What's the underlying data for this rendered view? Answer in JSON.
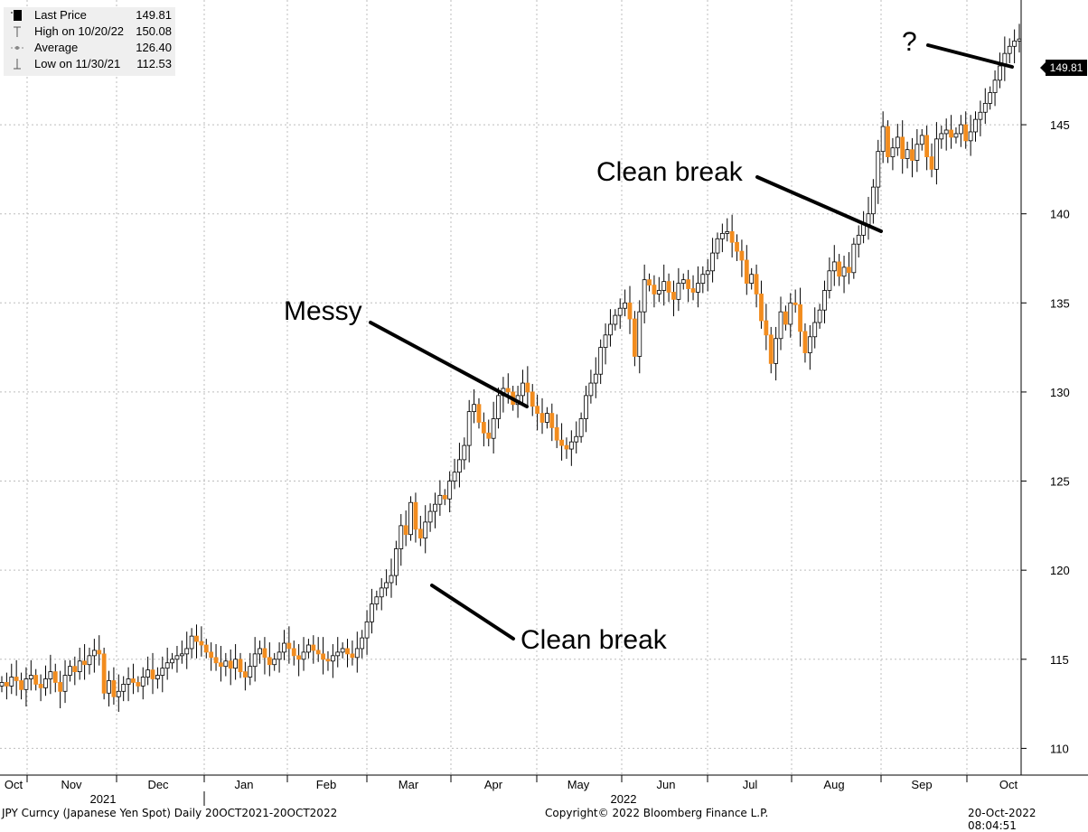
{
  "chart_data": {
    "type": "candlestick",
    "ylim": [
      108.5,
      152
    ],
    "yticks": [
      110,
      115,
      120,
      125,
      130,
      135,
      140,
      145
    ],
    "months": [
      "Oct",
      "Nov",
      "Dec",
      "Jan",
      "Feb",
      "Mar",
      "Apr",
      "May",
      "Jun",
      "Jul",
      "Aug",
      "Sep",
      "Oct"
    ],
    "years": [
      "2021",
      "2022"
    ],
    "last_price_label": "149.81",
    "colors": {
      "up": "#ffffff",
      "down": "#f28c1e",
      "grid": "#bdbdbd"
    },
    "closes": [
      113.7,
      113.5,
      114.0,
      113.8,
      113.3,
      113.9,
      114.1,
      113.6,
      113.4,
      113.9,
      114.3,
      113.7,
      113.2,
      114.1,
      114.6,
      114.3,
      114.9,
      114.7,
      115.2,
      115.5,
      115.3,
      113.1,
      113.8,
      112.9,
      113.2,
      113.6,
      113.9,
      113.7,
      113.5,
      114.0,
      114.4,
      113.9,
      114.1,
      114.5,
      114.8,
      115.0,
      115.2,
      115.3,
      115.6,
      116.3,
      116.0,
      115.8,
      115.4,
      115.1,
      114.8,
      114.6,
      114.9,
      114.5,
      115.0,
      114.3,
      114.0,
      114.6,
      115.3,
      115.6,
      115.1,
      114.7,
      115.0,
      115.4,
      115.9,
      115.6,
      115.2,
      115.0,
      115.4,
      115.8,
      115.5,
      115.3,
      115.0,
      114.9,
      115.2,
      115.4,
      115.6,
      115.3,
      115.1,
      115.6,
      116.2,
      117.1,
      118.1,
      118.5,
      119.0,
      119.3,
      119.7,
      121.2,
      122.5,
      122.0,
      123.8,
      122.3,
      121.8,
      122.7,
      123.3,
      123.7,
      124.2,
      124.0,
      125.0,
      125.5,
      126.2,
      127.0,
      128.9,
      129.3,
      128.3,
      127.7,
      127.4,
      128.5,
      129.8,
      130.2,
      130.0,
      129.3,
      129.8,
      130.5,
      130.0,
      129.2,
      128.8,
      128.3,
      128.8,
      128.0,
      127.3,
      127.0,
      126.8,
      127.2,
      127.5,
      128.5,
      129.8,
      130.5,
      131.0,
      132.5,
      133.2,
      133.8,
      134.3,
      134.7,
      135.0,
      134.1,
      132.0,
      134.5,
      136.3,
      136.0,
      135.5,
      135.7,
      136.2,
      135.6,
      135.2,
      136.1,
      136.3,
      135.8,
      135.6,
      136.1,
      136.6,
      136.8,
      137.8,
      138.6,
      138.9,
      139.0,
      138.4,
      137.9,
      137.4,
      136.1,
      136.6,
      135.5,
      134.0,
      133.2,
      131.6,
      133.0,
      134.5,
      133.8,
      135.0,
      134.9,
      133.4,
      132.2,
      133.1,
      133.9,
      134.6,
      135.7,
      136.8,
      137.3,
      136.5,
      137.0,
      136.7,
      138.3,
      138.8,
      139.4,
      140.0,
      141.5,
      143.5,
      144.9,
      143.2,
      143.7,
      144.3,
      143.1,
      143.6,
      143.0,
      143.9,
      144.4,
      143.2,
      142.5,
      144.2,
      144.5,
      144.7,
      144.3,
      144.5,
      145.0,
      144.1,
      144.6,
      145.3,
      145.7,
      146.2,
      146.8,
      147.5,
      148.3,
      149.0,
      149.4,
      149.7,
      149.81
    ]
  },
  "legend": {
    "items": [
      {
        "label": "Last Price",
        "value": "149.81"
      },
      {
        "label": "High on 10/20/22",
        "value": "150.08"
      },
      {
        "label": "Average",
        "value": "126.40"
      },
      {
        "label": "Low on 11/30/21",
        "value": "112.53"
      }
    ]
  },
  "annotations": {
    "question": "?",
    "clean_break_top": "Clean break",
    "messy": "Messy",
    "clean_break_bottom": "Clean break"
  },
  "footer": {
    "ticker": "JPY Curncy (Japanese Yen Spot)  Daily 20OCT2021-20OCT2022",
    "copyright": "Copyright© 2022 Bloomberg Finance L.P.",
    "timestamp": "20-Oct-2022 08:04:51"
  }
}
